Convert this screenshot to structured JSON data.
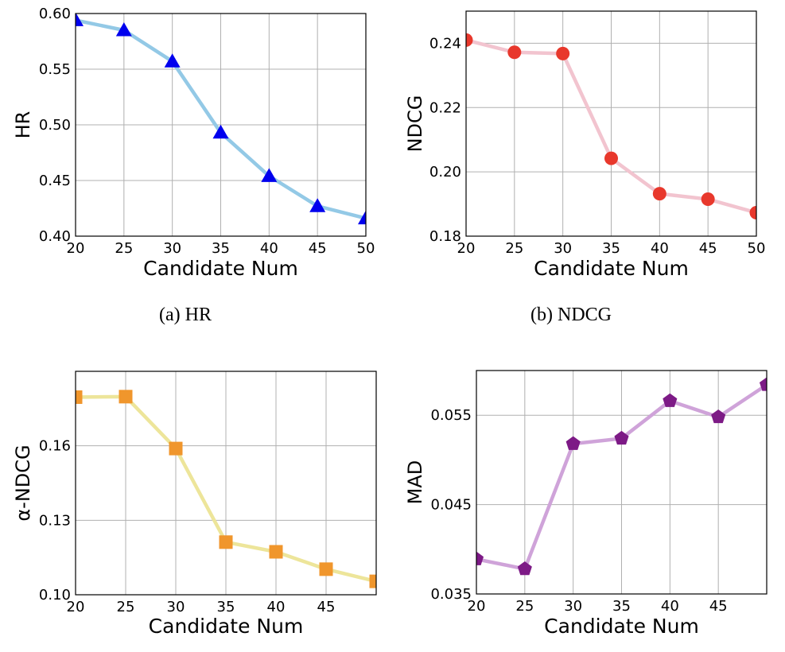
{
  "chart_data": [
    {
      "type": "line",
      "title": "",
      "caption": "(a)  HR",
      "xlabel": "Candidate Num",
      "ylabel": "HR",
      "x": [
        20,
        25,
        30,
        35,
        40,
        45,
        50
      ],
      "series": [
        {
          "name": "HR",
          "values": [
            0.594,
            0.585,
            0.557,
            0.493,
            0.454,
            0.427,
            0.416
          ]
        }
      ],
      "xlim": [
        20,
        50
      ],
      "ylim": [
        0.4,
        0.6
      ],
      "xticks": [
        20,
        25,
        30,
        35,
        40,
        45,
        50
      ],
      "xtick_labels": [
        "20",
        "25",
        "30",
        "35",
        "40",
        "45",
        "50"
      ],
      "yticks": [
        0.4,
        0.45,
        0.5,
        0.55,
        0.6
      ],
      "ytick_labels": [
        "0.40",
        "0.45",
        "0.50",
        "0.55",
        "0.60"
      ],
      "grid": true,
      "marker": "triangle",
      "line_color": "#93c9e6",
      "marker_color": "#0000ee"
    },
    {
      "type": "line",
      "title": "",
      "caption": "(b)  NDCG",
      "xlabel": "Candidate Num",
      "ylabel": "NDCG",
      "x": [
        20,
        25,
        30,
        35,
        40,
        45,
        50
      ],
      "series": [
        {
          "name": "NDCG",
          "values": [
            0.241,
            0.2372,
            0.2368,
            0.2042,
            0.1932,
            0.1915,
            0.1873
          ]
        }
      ],
      "xlim": [
        20,
        50
      ],
      "ylim": [
        0.18,
        0.25
      ],
      "xticks": [
        20,
        25,
        30,
        35,
        40,
        45,
        50
      ],
      "xtick_labels": [
        "20",
        "25",
        "30",
        "35",
        "40",
        "45",
        "50"
      ],
      "yticks": [
        0.18,
        0.2,
        0.22,
        0.24
      ],
      "ytick_labels": [
        "0.18",
        "0.20",
        "0.22",
        "0.24"
      ],
      "grid": true,
      "marker": "circle",
      "line_color": "#f2c4cf",
      "marker_color": "#e8382c"
    },
    {
      "type": "line",
      "title": "",
      "caption": "",
      "xlabel": "Candidate Num",
      "ylabel": "α-NDCG",
      "x": [
        20,
        25,
        30,
        35,
        40,
        45,
        50
      ],
      "series": [
        {
          "name": "α-NDCG",
          "values": [
            0.1796,
            0.1798,
            0.1589,
            0.1212,
            0.1173,
            0.1103,
            0.1054
          ]
        }
      ],
      "xlim": [
        20,
        50
      ],
      "ylim": [
        0.1,
        0.19
      ],
      "xticks": [
        20,
        25,
        30,
        35,
        40,
        45
      ],
      "xtick_labels": [
        "20",
        "25",
        "30",
        "35",
        "40",
        "45"
      ],
      "yticks": [
        0.1,
        0.13,
        0.16
      ],
      "ytick_labels": [
        "0.10",
        "0.13",
        "0.16"
      ],
      "grid": true,
      "marker": "square",
      "line_color": "#ede59a",
      "marker_color": "#f0962c"
    },
    {
      "type": "line",
      "title": "",
      "caption": "",
      "xlabel": "Candidate Num",
      "ylabel": "MAD",
      "x": [
        20,
        25,
        30,
        35,
        40,
        45,
        50
      ],
      "series": [
        {
          "name": "MAD",
          "values": [
            0.0389,
            0.0378,
            0.0518,
            0.0524,
            0.0566,
            0.0548,
            0.0584
          ]
        }
      ],
      "xlim": [
        20,
        50
      ],
      "ylim": [
        0.035,
        0.06
      ],
      "xticks": [
        20,
        25,
        30,
        35,
        40,
        45
      ],
      "xtick_labels": [
        "20",
        "25",
        "30",
        "35",
        "40",
        "45"
      ],
      "yticks": [
        0.035,
        0.045,
        0.055
      ],
      "ytick_labels": [
        "0.035",
        "0.045",
        "0.055"
      ],
      "grid": true,
      "marker": "pentagon",
      "line_color": "#cfa3d9",
      "marker_color": "#7d1a86"
    }
  ]
}
